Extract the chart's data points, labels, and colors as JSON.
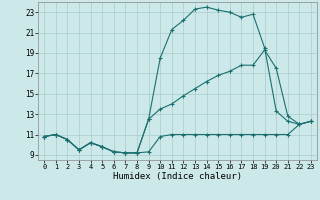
{
  "title": "",
  "xlabel": "Humidex (Indice chaleur)",
  "xlim": [
    -0.5,
    23.5
  ],
  "ylim": [
    8.5,
    24.0
  ],
  "xticks": [
    0,
    1,
    2,
    3,
    4,
    5,
    6,
    7,
    8,
    9,
    10,
    11,
    12,
    13,
    14,
    15,
    16,
    17,
    18,
    19,
    20,
    21,
    22,
    23
  ],
  "yticks": [
    9,
    11,
    13,
    15,
    17,
    19,
    21,
    23
  ],
  "bg_color": "#cde8e8",
  "grid_color": "#a8cccc",
  "line_color": "#1a7070",
  "lines": [
    {
      "x": [
        0,
        1,
        2,
        3,
        4,
        5,
        6,
        7,
        8,
        9,
        10,
        11,
        12,
        13,
        14,
        15,
        16,
        17,
        18,
        19,
        20,
        21,
        22,
        23
      ],
      "y": [
        10.8,
        11.0,
        10.5,
        9.5,
        10.2,
        9.8,
        9.3,
        9.2,
        9.2,
        9.3,
        10.8,
        11.0,
        11.0,
        11.0,
        11.0,
        11.0,
        11.0,
        11.0,
        11.0,
        11.0,
        11.0,
        11.0,
        12.0,
        12.3
      ]
    },
    {
      "x": [
        0,
        1,
        2,
        3,
        4,
        5,
        6,
        7,
        8,
        9,
        10,
        11,
        12,
        13,
        14,
        15,
        16,
        17,
        18,
        19,
        20,
        21,
        22,
        23
      ],
      "y": [
        10.8,
        11.0,
        10.5,
        9.5,
        10.2,
        9.8,
        9.3,
        9.2,
        9.2,
        12.5,
        18.5,
        21.3,
        22.2,
        23.3,
        23.5,
        23.2,
        23.0,
        22.5,
        22.8,
        19.5,
        13.3,
        12.3,
        12.0,
        12.3
      ]
    },
    {
      "x": [
        0,
        1,
        2,
        3,
        4,
        5,
        6,
        7,
        8,
        9,
        10,
        11,
        12,
        13,
        14,
        15,
        16,
        17,
        18,
        19,
        20,
        21,
        22,
        23
      ],
      "y": [
        10.8,
        11.0,
        10.5,
        9.5,
        10.2,
        9.8,
        9.3,
        9.2,
        9.2,
        12.5,
        13.5,
        14.0,
        14.8,
        15.5,
        16.2,
        16.8,
        17.2,
        17.8,
        17.8,
        19.3,
        17.5,
        12.8,
        12.0,
        12.3
      ]
    }
  ]
}
